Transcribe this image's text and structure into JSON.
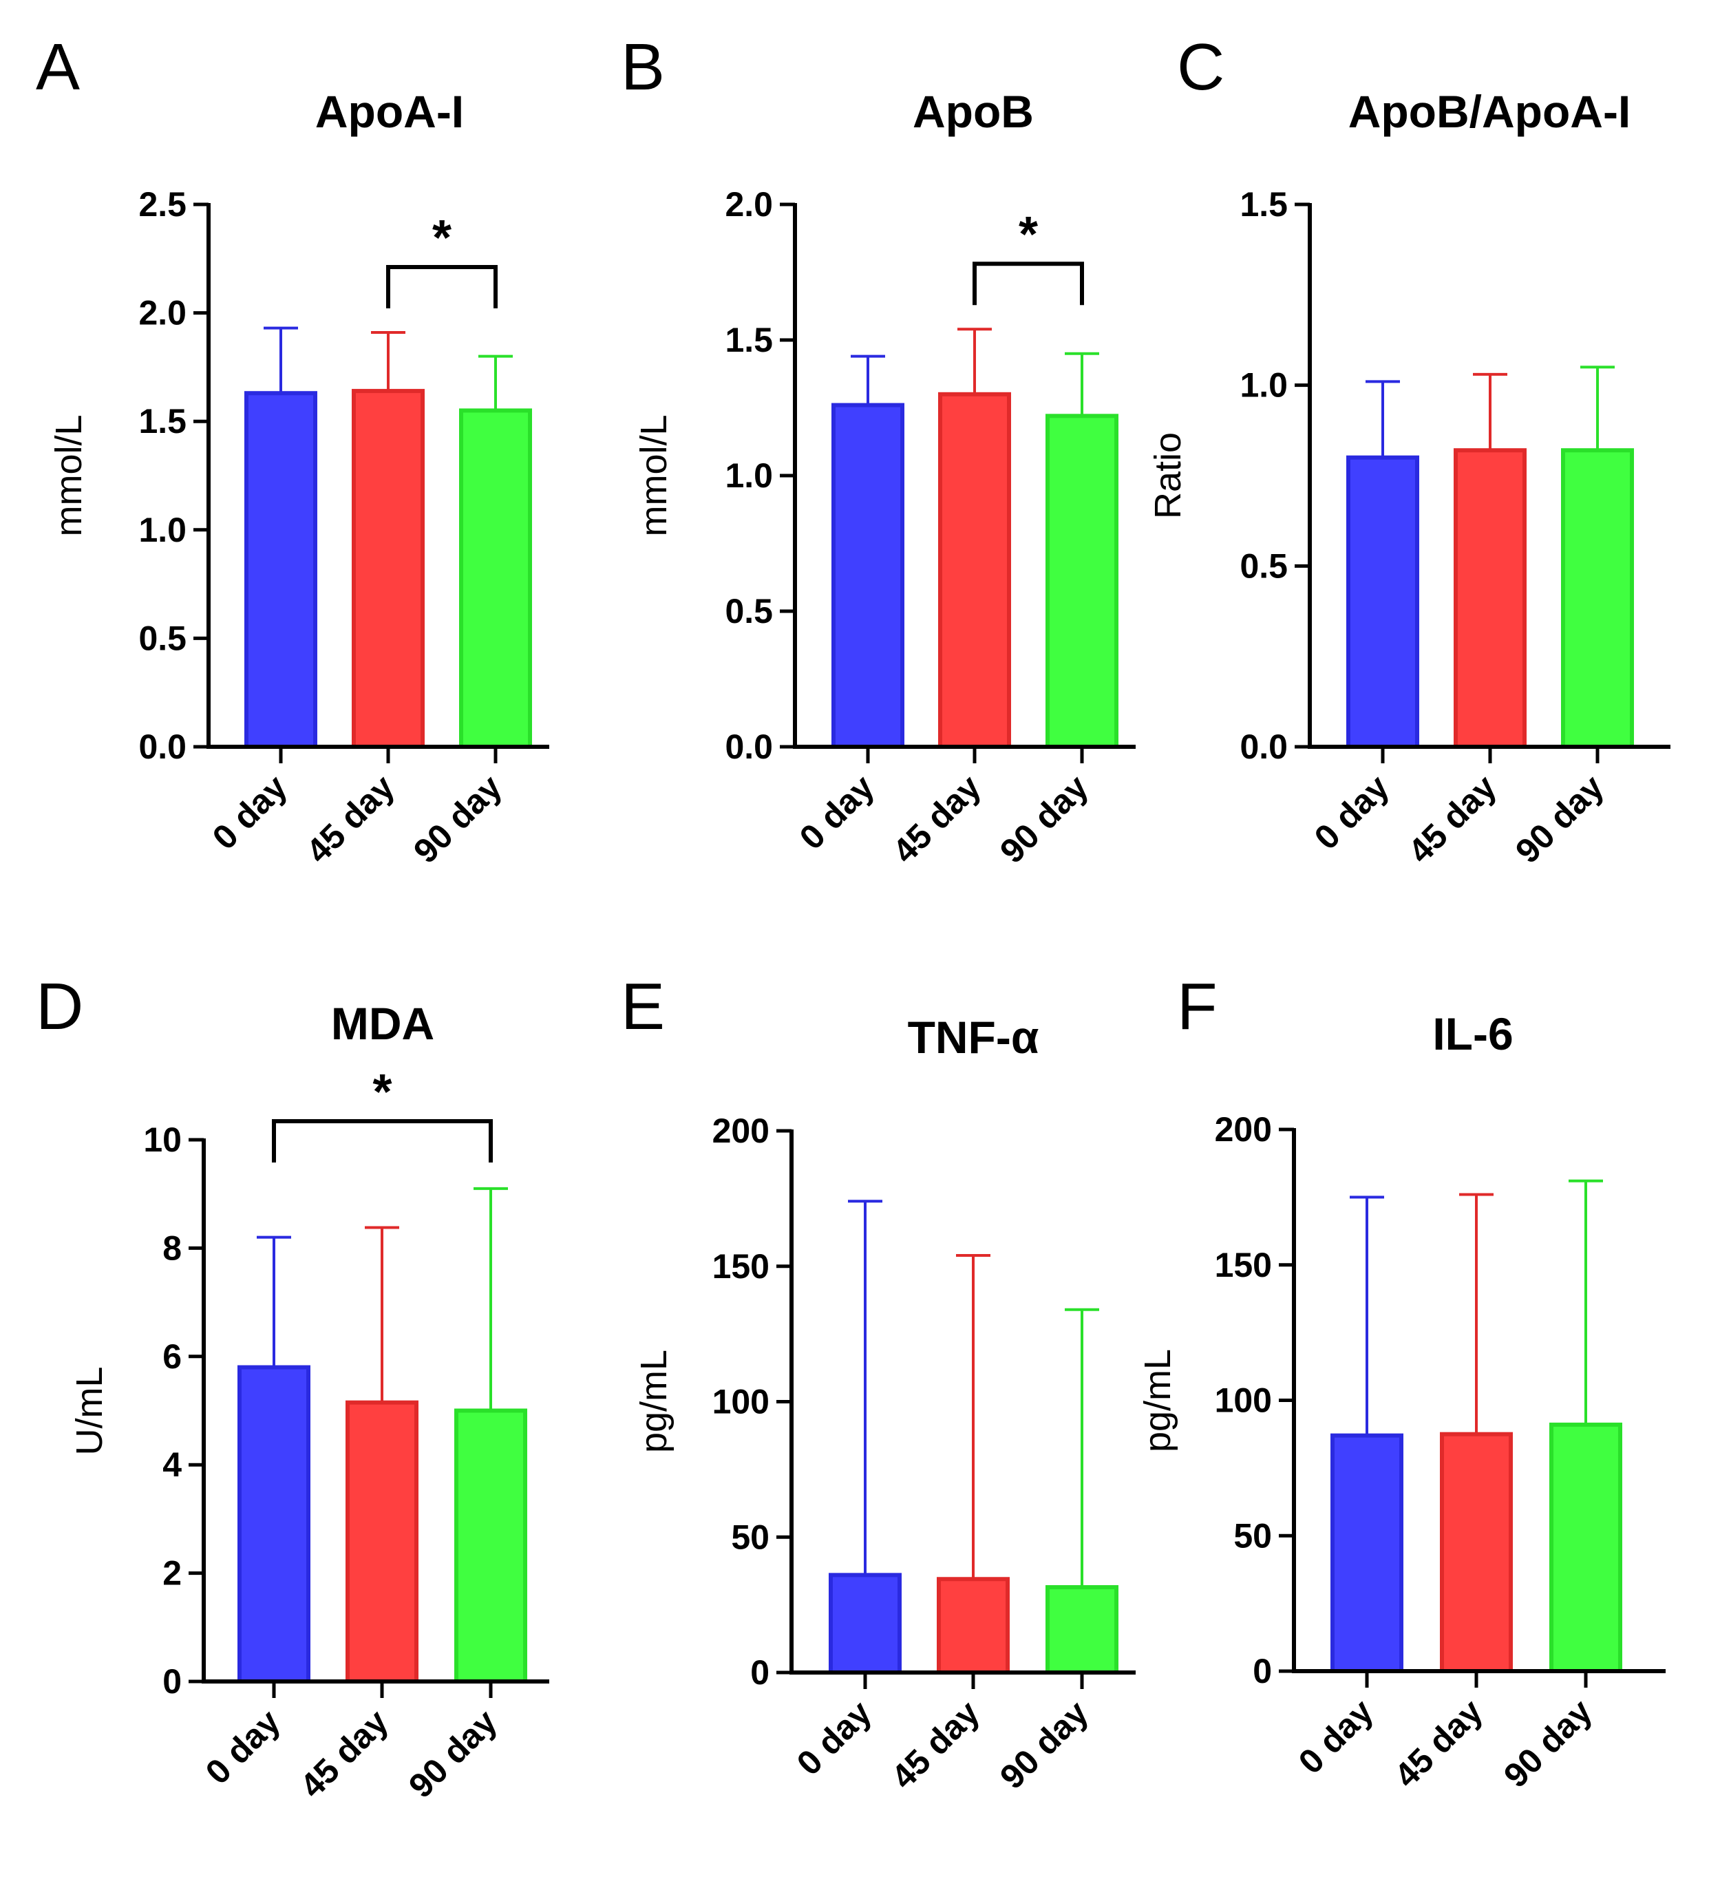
{
  "figure_colors": [
    "#4040ff",
    "#ff4040",
    "#40ff40"
  ],
  "figure_edge_colors": [
    "#2a2ae0",
    "#e02a2a",
    "#2ae02a"
  ],
  "chart_data": [
    {
      "panel": "A",
      "type": "bar",
      "title": "ApoA-I",
      "ylabel": "mmol/L",
      "xlabel": "",
      "categories": [
        "0 day",
        "45 day",
        "90 day"
      ],
      "values": [
        1.63,
        1.64,
        1.55
      ],
      "error_upper": [
        1.93,
        1.91,
        1.8
      ],
      "ylim": [
        0,
        2.5
      ],
      "yticks": [
        0.0,
        0.5,
        1.0,
        1.5,
        2.0,
        2.5
      ],
      "ytick_labels": [
        "0.0",
        "0.5",
        "1.0",
        "1.5",
        "2.0",
        "2.5"
      ],
      "significance": [
        {
          "from": 1,
          "to": 2,
          "label": "*"
        }
      ]
    },
    {
      "panel": "B",
      "type": "bar",
      "title": "ApoB",
      "ylabel": "mmol/L",
      "xlabel": "",
      "categories": [
        "0 day",
        "45 day",
        "90 day"
      ],
      "values": [
        1.26,
        1.3,
        1.22
      ],
      "error_upper": [
        1.44,
        1.54,
        1.45
      ],
      "ylim": [
        0,
        2.0
      ],
      "yticks": [
        0.0,
        0.5,
        1.0,
        1.5,
        2.0
      ],
      "ytick_labels": [
        "0.0",
        "0.5",
        "1.0",
        "1.5",
        "2.0"
      ],
      "significance": [
        {
          "from": 1,
          "to": 2,
          "label": "*"
        }
      ]
    },
    {
      "panel": "C",
      "type": "bar",
      "title": "ApoB/ApoA-I",
      "ylabel": "Ratio",
      "xlabel": "",
      "categories": [
        "0 day",
        "45 day",
        "90 day"
      ],
      "values": [
        0.8,
        0.82,
        0.82
      ],
      "error_upper": [
        1.01,
        1.03,
        1.05
      ],
      "ylim": [
        0,
        1.5
      ],
      "yticks": [
        0.0,
        0.5,
        1.0,
        1.5
      ],
      "ytick_labels": [
        "0.0",
        "0.5",
        "1.0",
        "1.5"
      ],
      "significance": []
    },
    {
      "panel": "D",
      "type": "bar",
      "title": "MDA",
      "ylabel": "U/mL",
      "xlabel": "",
      "categories": [
        "0 day",
        "45 day",
        "90 day"
      ],
      "values": [
        5.8,
        5.15,
        5.0
      ],
      "error_upper": [
        8.2,
        8.38,
        9.1
      ],
      "ylim": [
        0,
        10
      ],
      "yticks": [
        0,
        2,
        4,
        6,
        8,
        10
      ],
      "ytick_labels": [
        "0",
        "2",
        "4",
        "6",
        "8",
        "10"
      ],
      "significance": [
        {
          "from": 0,
          "to": 2,
          "label": "*"
        }
      ]
    },
    {
      "panel": "E",
      "type": "bar",
      "title": "TNF-α",
      "ylabel": "pg/mL",
      "xlabel": "",
      "categories": [
        "0 day",
        "45 day",
        "90 day"
      ],
      "values": [
        36,
        34.5,
        31.5
      ],
      "error_upper": [
        174,
        154,
        134
      ],
      "ylim": [
        0,
        200
      ],
      "yticks": [
        0,
        50,
        100,
        150,
        200
      ],
      "ytick_labels": [
        "0",
        "50",
        "100",
        "150",
        "200"
      ],
      "significance": []
    },
    {
      "panel": "F",
      "type": "bar",
      "title": "IL-6",
      "ylabel": "pg/mL",
      "xlabel": "",
      "categories": [
        "0 day",
        "45 day",
        "90 day"
      ],
      "values": [
        87,
        87.5,
        91
      ],
      "error_upper": [
        175,
        176,
        181
      ],
      "ylim": [
        0,
        200
      ],
      "yticks": [
        0,
        50,
        100,
        150,
        200
      ],
      "ytick_labels": [
        "0",
        "50",
        "100",
        "150",
        "200"
      ],
      "significance": []
    }
  ]
}
